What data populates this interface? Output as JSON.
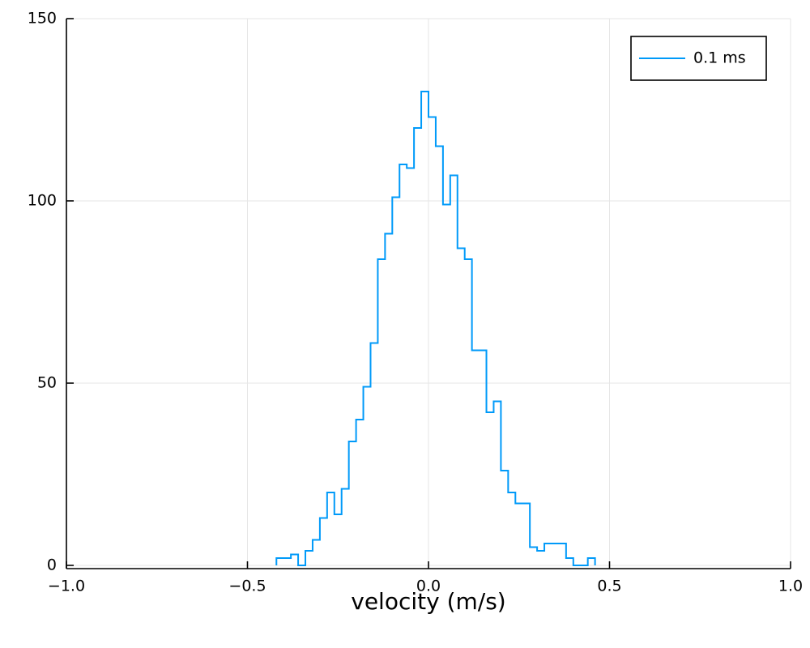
{
  "chart_data": {
    "type": "histogram",
    "title": "",
    "xlabel": "velocity (m/s)",
    "ylabel": "",
    "xlim": [
      -1.0,
      1.0
    ],
    "ylim": [
      0,
      150
    ],
    "xticks": [
      -1.0,
      -0.5,
      0.0,
      0.5,
      1.0
    ],
    "xtick_labels": [
      "−1.0",
      "−0.5",
      "0.0",
      "0.5",
      "1.0"
    ],
    "yticks": [
      0,
      50,
      100,
      150
    ],
    "ytick_labels": [
      "0",
      "50",
      "100",
      "150"
    ],
    "grid": true,
    "legend_position": "top-right",
    "series": [
      {
        "name": "0.1 ms",
        "color": "#009af9",
        "bin_width": 0.02,
        "bin_start": -0.42,
        "counts": [
          2,
          2,
          3,
          0,
          4,
          7,
          13,
          20,
          14,
          21,
          34,
          40,
          49,
          61,
          84,
          91,
          101,
          110,
          109,
          120,
          130,
          123,
          115,
          99,
          107,
          87,
          84,
          59,
          59,
          42,
          45,
          26,
          20,
          17,
          17,
          5,
          4,
          6,
          6,
          6,
          2,
          0,
          0,
          2
        ]
      }
    ]
  }
}
